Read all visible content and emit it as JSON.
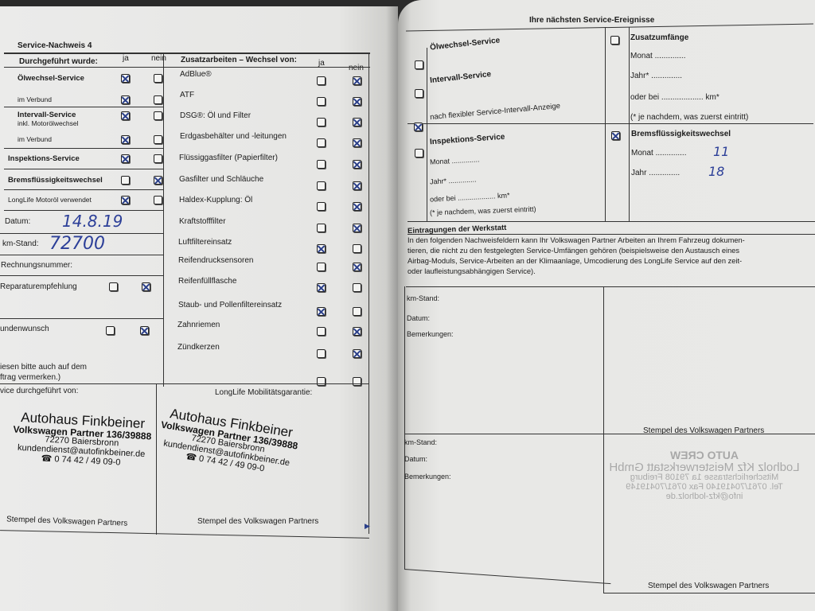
{
  "left": {
    "title": "Service-Nachweis 4",
    "col_header": "Durchgeführt wurde:",
    "ja": "ja",
    "nein": "nein",
    "rows": [
      {
        "label": "Ölwechsel-Service",
        "bold": true,
        "checked": "ja"
      },
      {
        "label": "im Verbund",
        "checked": "ja"
      },
      {
        "label": "Intervall-Service",
        "sub": "inkl. Motorölwechsel",
        "bold": true,
        "checked": "ja"
      },
      {
        "label": "im Verbund",
        "checked": "ja"
      },
      {
        "label": "Inspektions-Service",
        "bold": true,
        "checked": "ja"
      },
      {
        "label": "Bremsflüssigkeitswechsel",
        "bold": true,
        "checked": "nein"
      },
      {
        "label": "LongLife Motoröl verwendet",
        "checked": "ja"
      }
    ],
    "datum_label": "Datum:",
    "datum_value": "14.8.19",
    "km_label": "km-Stand:",
    "km_value": "72700",
    "rechnung_label": "Rechnungsnummer:",
    "reparatur_label": "Reparaturempfehlung",
    "reparatur_checked": "nein",
    "kunden_label": "undenwunsch",
    "kunden_checked": "nein",
    "note_line1": "iesen bitte auch auf dem",
    "note_line2": "ftrag vermerken.)",
    "performed_by": "vice durchgeführt von:",
    "extra_header": "Zusatzarbeiten – Wechsel von:",
    "extras": [
      {
        "label": "AdBlue®",
        "checked": "nein"
      },
      {
        "label": "ATF",
        "checked": "nein"
      },
      {
        "label": "DSG®: Öl und Filter",
        "checked": "nein"
      },
      {
        "label": "Erdgasbehälter und -leitungen",
        "checked": "nein"
      },
      {
        "label": "Flüssiggasfilter (Papierfilter)",
        "checked": "nein"
      },
      {
        "label": "Gasfilter und Schläuche",
        "checked": "nein"
      },
      {
        "label": "Haldex-Kupplung: Öl",
        "checked": "nein"
      },
      {
        "label": "Kraftstofffilter",
        "checked": "nein"
      },
      {
        "label": "Luftfiltereinsatz",
        "checked": "ja"
      },
      {
        "label": "Reifendrucksensoren",
        "checked": "nein"
      },
      {
        "label": "Reifenfüllflasche",
        "checked": "ja"
      },
      {
        "label": "Staub- und Pollenfiltereinsatz",
        "checked": "ja"
      },
      {
        "label": "Zahnriemen",
        "checked": "nein"
      },
      {
        "label": "Zündkerzen",
        "checked": "nein"
      },
      {
        "label": "",
        "checked": ""
      }
    ],
    "mobility": "LongLife Mobilitätsgarantie:",
    "stamp": {
      "name": "Autohaus Finkbeiner",
      "line1": "Volkswagen Partner 136/39888",
      "line2": "72270 Baiersbronn",
      "line3": "kundendienst@autofinkbeiner.de",
      "line4": "☎ 0 74 42 / 49 09-0"
    },
    "stamp_label": "Stempel des Volkswagen Partners"
  },
  "right": {
    "title": "Ihre nächsten Service-Ereignisse",
    "oel": "Ölwechsel-Service",
    "intervall": "Intervall-Service",
    "flex": "nach flexibler Service-Intervall-Anzeige",
    "inspektion": "Inspektions-Service",
    "monat": "Monat ..............",
    "jahr": "Jahr* ..............",
    "oder": "oder bei ................... km*",
    "note": "(* je nachdem, was zuerst eintritt)",
    "zusatz": "Zusatzumfänge",
    "brems": "Bremsflüssigkeitswechsel",
    "brems_monat": "Monat ..............",
    "brems_monat_value": "11",
    "brems_jahr": "Jahr ..............",
    "brems_jahr_value": "18",
    "werkstatt_title": "Eintragungen der Werkstatt",
    "werkstatt_text1": "In den folgenden Nachweisfeldern kann Ihr Volkswagen Partner Arbeiten an Ihrem Fahrzeug dokumen-",
    "werkstatt_text2": "tieren, die nicht zu den festgelegten Service-Umfängen gehören (beispielsweise den Austausch eines",
    "werkstatt_text3": "Airbag-Moduls, Service-Arbeiten an der Klimaanlage, Umcodierung des LongLife Service auf den zeit-",
    "werkstatt_text4": "oder laufleistungsabhängigen Service).",
    "km": "km-Stand:",
    "datum": "Datum:",
    "bemerkungen": "Bemerkungen:",
    "stamp_label": "Stempel des Volkswagen Partners",
    "ghost_stamp": {
      "brand": "AUTO CREW",
      "l1": "Lodholz Kfz Meisterwerkstatt GmbH",
      "l2": "Mitscherlichstrasse 1a 79108 Freiburg",
      "l3": "Tel. 0761/70419140 Fax 0761/70419149",
      "l4": "info@kfz-lodholz.de"
    }
  }
}
